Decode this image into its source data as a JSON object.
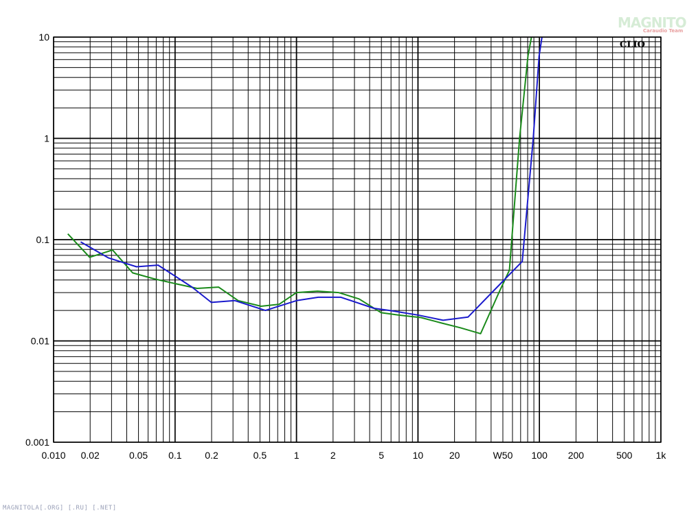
{
  "chart_data": {
    "type": "line",
    "x_scale": "log",
    "y_scale": "log",
    "xlim": [
      0.01,
      1000
    ],
    "ylim": [
      0.001,
      10
    ],
    "grid": true,
    "x_tick_labels": [
      {
        "v": 0.01,
        "t": "0.010"
      },
      {
        "v": 0.02,
        "t": "0.02"
      },
      {
        "v": 0.05,
        "t": "0.05"
      },
      {
        "v": 0.1,
        "t": "0.1"
      },
      {
        "v": 0.2,
        "t": "0.2"
      },
      {
        "v": 0.5,
        "t": "0.5"
      },
      {
        "v": 1,
        "t": "1"
      },
      {
        "v": 2,
        "t": "2"
      },
      {
        "v": 5,
        "t": "5"
      },
      {
        "v": 10,
        "t": "10"
      },
      {
        "v": 20,
        "t": "20"
      },
      {
        "v": 50,
        "t": "W50"
      },
      {
        "v": 100,
        "t": "100"
      },
      {
        "v": 200,
        "t": "200"
      },
      {
        "v": 500,
        "t": "500"
      },
      {
        "v": 1000,
        "t": "1k"
      }
    ],
    "y_tick_labels": [
      {
        "v": 10,
        "t": "10"
      },
      {
        "v": 1,
        "t": "1"
      },
      {
        "v": 0.1,
        "t": "0.1"
      },
      {
        "v": 0.01,
        "t": "0.01"
      },
      {
        "v": 0.001,
        "t": "0.001"
      }
    ],
    "series": [
      {
        "color": "#1a8a1a",
        "points": [
          [
            0.0131,
            0.114
          ],
          [
            0.0198,
            0.067
          ],
          [
            0.0306,
            0.079
          ],
          [
            0.0448,
            0.047
          ],
          [
            0.0674,
            0.041
          ],
          [
            0.0983,
            0.037
          ],
          [
            0.152,
            0.033
          ],
          [
            0.228,
            0.034
          ],
          [
            0.331,
            0.025
          ],
          [
            0.512,
            0.022
          ],
          [
            0.72,
            0.023
          ],
          [
            1.0,
            0.03
          ],
          [
            1.49,
            0.031
          ],
          [
            2.22,
            0.03
          ],
          [
            3.27,
            0.026
          ],
          [
            4.98,
            0.019
          ],
          [
            6.87,
            0.018
          ],
          [
            10.6,
            0.017
          ],
          [
            15.7,
            0.015
          ],
          [
            22.3,
            0.0135
          ],
          [
            32.8,
            0.0118
          ],
          [
            46.4,
            0.03
          ],
          [
            56.6,
            0.05
          ],
          [
            68.6,
            1.0
          ],
          [
            80.5,
            6.5
          ],
          [
            86.0,
            10.0
          ]
        ]
      },
      {
        "color": "#1a1acc",
        "points": [
          [
            0.0167,
            0.095
          ],
          [
            0.0283,
            0.066
          ],
          [
            0.0482,
            0.054
          ],
          [
            0.0725,
            0.056
          ],
          [
            0.138,
            0.034
          ],
          [
            0.199,
            0.024
          ],
          [
            0.311,
            0.025
          ],
          [
            0.555,
            0.02
          ],
          [
            1.0,
            0.025
          ],
          [
            1.51,
            0.027
          ],
          [
            2.32,
            0.027
          ],
          [
            4.34,
            0.021
          ],
          [
            5.84,
            0.02
          ],
          [
            10.0,
            0.018
          ],
          [
            16.1,
            0.016
          ],
          [
            25.8,
            0.0172
          ],
          [
            49.1,
            0.038
          ],
          [
            72.2,
            0.061
          ],
          [
            88.9,
            1.0
          ],
          [
            99.4,
            6.5
          ],
          [
            105.0,
            10.0
          ]
        ]
      }
    ],
    "annotations": [
      "CLIO"
    ]
  },
  "watermark": {
    "logo_text": "MAGNITOLA",
    "logo_subtext": "Caraudio Team",
    "footer_text": "MAGNITOLA[.ORG] [.RU] [.NET]"
  }
}
